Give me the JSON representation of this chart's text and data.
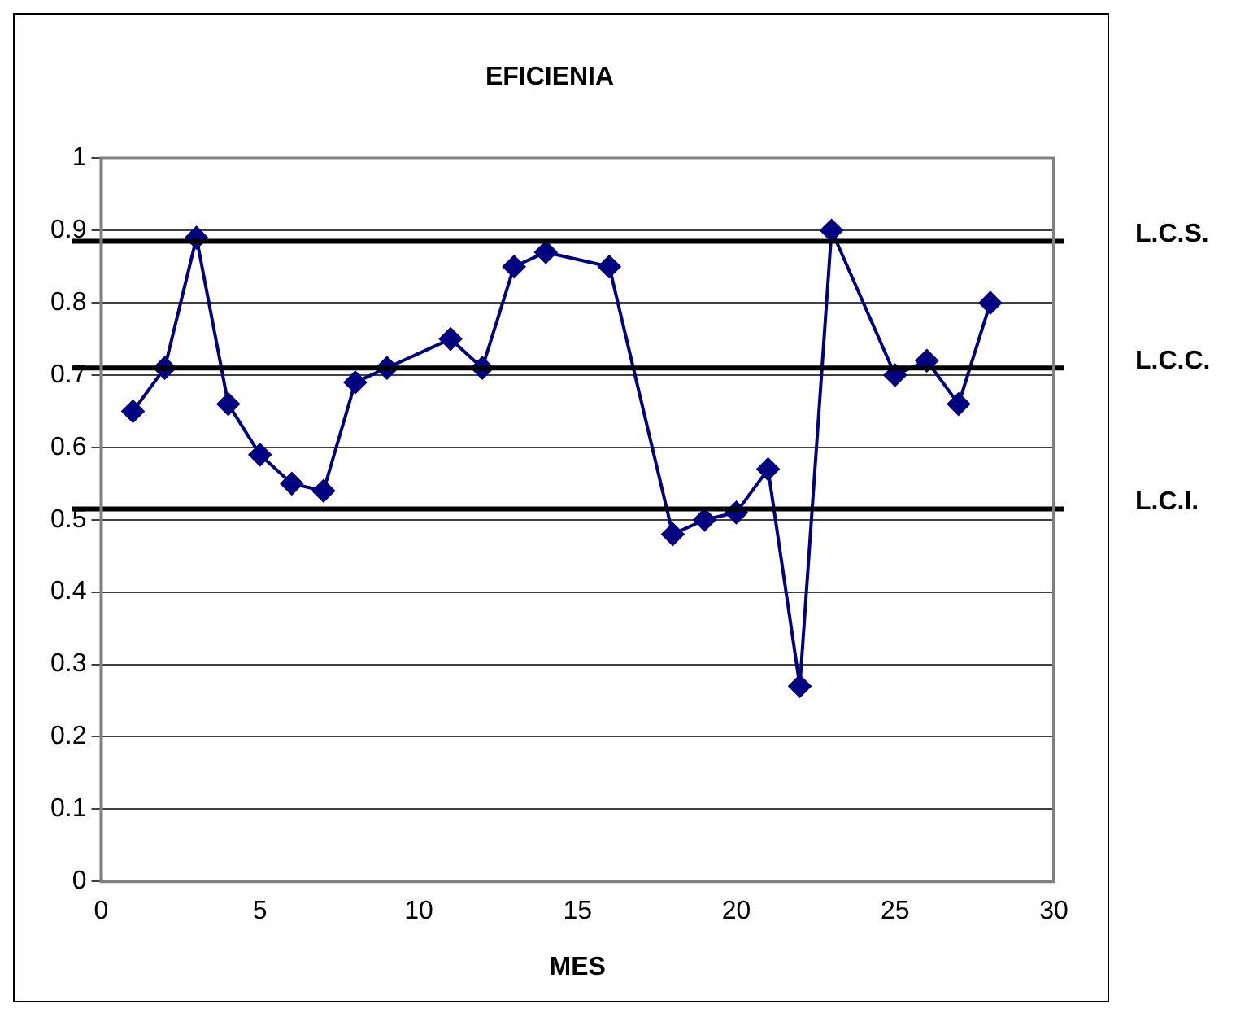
{
  "chart_data": {
    "type": "line",
    "title": "EFICIENIA",
    "xlabel": "MES",
    "x": [
      1,
      2,
      3,
      4,
      5,
      6,
      7,
      8,
      9,
      11,
      12,
      13,
      14,
      16,
      18,
      19,
      20,
      21,
      22,
      23,
      25,
      26,
      27,
      28
    ],
    "series": [
      {
        "color": "#000080",
        "values": [
          0.65,
          0.71,
          0.89,
          0.66,
          0.59,
          0.55,
          0.54,
          0.69,
          0.71,
          0.75,
          0.71,
          0.85,
          0.87,
          0.85,
          0.48,
          0.5,
          0.51,
          0.57,
          0.27,
          0.9,
          0.7,
          0.72,
          0.66,
          0.8
        ]
      }
    ],
    "xlim": [
      0,
      30
    ],
    "xticks": [
      0,
      5,
      10,
      15,
      20,
      25,
      30
    ],
    "ylim": [
      0,
      1
    ],
    "yticks": [
      0,
      0.1,
      0.2,
      0.3,
      0.4,
      0.5,
      0.6,
      0.7,
      0.8,
      0.9,
      1
    ],
    "ref_lines": [
      {
        "axis": "y",
        "value": 0.885,
        "label": "L.C.S.",
        "color": "#000000"
      },
      {
        "axis": "y",
        "value": 0.71,
        "label": "L.C.C.",
        "color": "#000000"
      },
      {
        "axis": "y",
        "value": 0.515,
        "label": "L.C.I.",
        "color": "#000000"
      }
    ],
    "grid": "y",
    "legend": false,
    "marker": "diamond",
    "line_style": "solid"
  }
}
